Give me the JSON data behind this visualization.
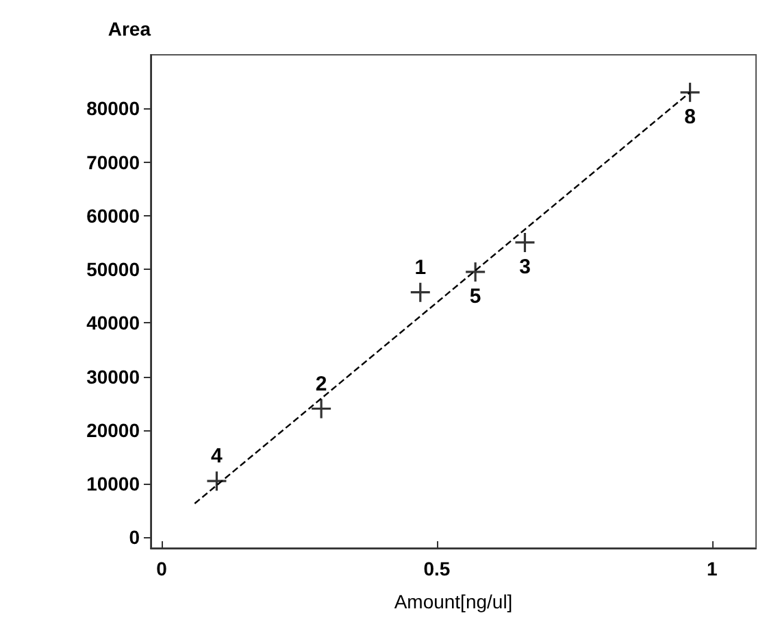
{
  "chart_data": {
    "type": "scatter",
    "ylabel": "Area",
    "xlabel": "Amount[ng/ul]",
    "xlim": [
      -0.02,
      1.08
    ],
    "xticks": [
      0,
      0.5,
      1
    ],
    "ylim": [
      -2000,
      90000
    ],
    "yticks": [
      0,
      10000,
      20000,
      30000,
      40000,
      50000,
      60000,
      70000,
      80000
    ],
    "grid": false,
    "series": [
      {
        "color": "#000000",
        "marker": "cross",
        "x": [
          0.1,
          0.29,
          0.47,
          0.57,
          0.66,
          0.96
        ],
        "values": [
          10500,
          24000,
          45700,
          49500,
          55000,
          83000
        ]
      },
      {
        "type": "line",
        "color": "#000000",
        "line_style": "dashed",
        "x": [
          0.06,
          0.96
        ],
        "values": [
          6300,
          83000
        ]
      }
    ],
    "annotations": [
      {
        "text": "4",
        "x": 0.1,
        "y": 10500
      },
      {
        "text": "2",
        "x": 0.29,
        "y": 24000
      },
      {
        "text": "1",
        "x": 0.47,
        "y": 45700
      },
      {
        "text": "5",
        "x": 0.57,
        "y": 49500
      },
      {
        "text": "3",
        "x": 0.66,
        "y": 55000
      },
      {
        "text": "8",
        "x": 0.96,
        "y": 83000
      }
    ]
  }
}
